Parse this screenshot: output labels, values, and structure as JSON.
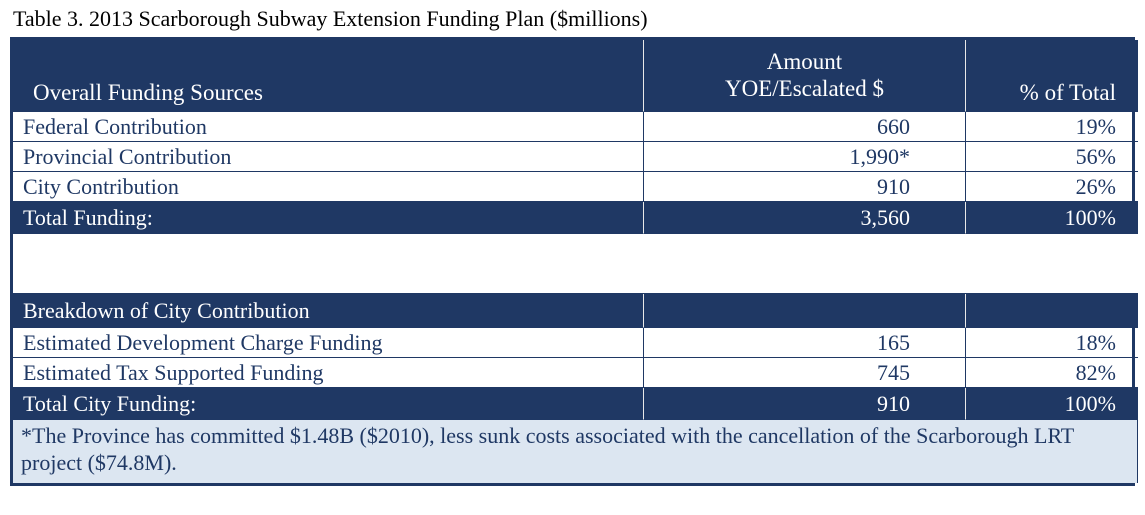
{
  "caption": "Table 3. 2013 Scarborough Subway Extension Funding Plan ($millions)",
  "colors": {
    "navy": "#1F3864",
    "footnote_blue": "#DCE6F1",
    "text_navy": "#1F3864"
  },
  "table": {
    "columns": {
      "sources": "Overall Funding Sources",
      "amount_line1": "Amount",
      "amount_line2": "YOE/Escalated $",
      "pct": "% of Total"
    },
    "funding_rows": [
      {
        "label": "Federal Contribution",
        "amount": "660",
        "pct": "19%"
      },
      {
        "label": "Provincial Contribution",
        "amount": "1,990*",
        "pct": "56%"
      },
      {
        "label": "City Contribution",
        "amount": "910",
        "pct": "26%"
      }
    ],
    "total_funding": {
      "label": "Total Funding:",
      "amount": "3,560",
      "pct": "100%"
    },
    "breakdown_header": "Breakdown of City Contribution",
    "breakdown_rows": [
      {
        "label": "Estimated Development Charge Funding",
        "amount": "165",
        "pct": "18%"
      },
      {
        "label": "Estimated Tax Supported Funding",
        "amount": "745",
        "pct": "82%"
      }
    ],
    "total_city": {
      "label": "Total City Funding:",
      "amount": "910",
      "pct": "100%"
    },
    "footnote": "*The Province has committed $1.48B ($2010), less sunk costs associated with the cancellation of the Scarborough LRT project ($74.8M)."
  },
  "chart_data": {
    "type": "table",
    "title": "Table 3. 2013 Scarborough Subway Extension Funding Plan ($millions)",
    "columns": [
      "Overall Funding Sources",
      "Amount YOE/Escalated $",
      "% of Total"
    ],
    "rows": [
      [
        "Federal Contribution",
        "660",
        "19%"
      ],
      [
        "Provincial Contribution",
        "1,990*",
        "56%"
      ],
      [
        "City Contribution",
        "910",
        "26%"
      ],
      [
        "Total Funding:",
        "3,560",
        "100%"
      ],
      [
        "Breakdown of City Contribution",
        "",
        ""
      ],
      [
        "Estimated Development Charge Funding",
        "165",
        "18%"
      ],
      [
        "Estimated Tax Supported Funding",
        "745",
        "82%"
      ],
      [
        "Total City Funding:",
        "910",
        "100%"
      ]
    ],
    "footnote": "*The Province has committed $1.48B ($2010), less sunk costs associated with the cancellation of the Scarborough LRT project ($74.8M)."
  }
}
